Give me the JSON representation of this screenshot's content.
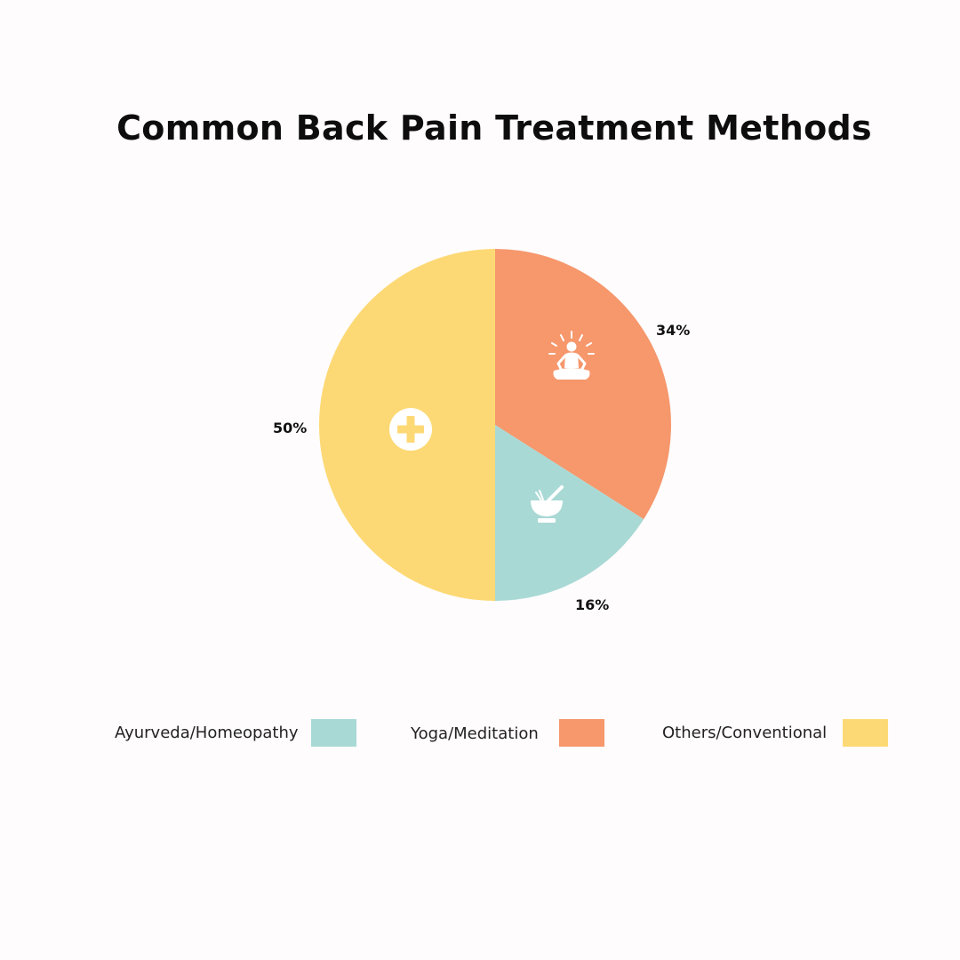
{
  "chart_data": {
    "type": "pie",
    "title": "Common Back Pain Treatment Methods",
    "categories": [
      "Ayurveda/Homeopathy",
      "Yoga/Meditation",
      "Others/Conventional"
    ],
    "values": [
      16,
      34,
      50
    ],
    "value_labels": [
      "16%",
      "34%",
      "50%"
    ],
    "colors": [
      "#a9d9d5",
      "#f6976c",
      "#fdd975"
    ],
    "slice_icons": [
      "mortar-pestle-icon",
      "meditation-icon",
      "medical-cross-icon"
    ],
    "start_angle": "12 o'clock",
    "direction": "clockwise",
    "slice_order": [
      "Yoga/Meditation",
      "Ayurveda/Homeopathy",
      "Others/Conventional"
    ],
    "legend_position": "bottom"
  }
}
